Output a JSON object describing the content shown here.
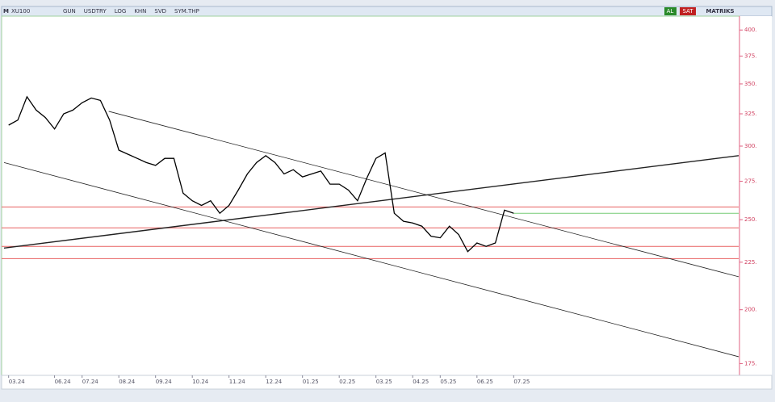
{
  "toolbar": {
    "logo": "M",
    "symbol": "XU100",
    "buttons": [
      "GUN",
      "USDTRY",
      "LOG",
      "KHN",
      "SVD",
      "SYM.THP"
    ],
    "buy": "AL",
    "sell": "SAT",
    "brand": "MATRIKS"
  },
  "chart_data": {
    "type": "line",
    "log": true,
    "color": "#000000",
    "categories": [
      "03.24",
      null,
      null,
      null,
      null,
      "06.24",
      null,
      null,
      "07.24",
      null,
      null,
      null,
      "08.24",
      null,
      null,
      null,
      "09.24",
      null,
      null,
      null,
      "10.24",
      null,
      null,
      null,
      "11.24",
      null,
      null,
      null,
      "12.24",
      null,
      null,
      null,
      "01.25",
      null,
      null,
      null,
      "02.25",
      null,
      null,
      null,
      "03.25",
      null,
      null,
      null,
      "04.25",
      null,
      null,
      "05.25",
      null,
      null,
      null,
      "06.25",
      null,
      null,
      null,
      "07.25",
      null,
      null,
      null,
      null,
      null,
      null,
      null,
      null,
      null,
      null,
      null,
      null,
      null,
      null,
      null,
      null,
      null,
      null,
      null,
      null,
      null,
      null,
      null,
      null
    ],
    "values": [
      316,
      320,
      339,
      328,
      322,
      313,
      325,
      328,
      334,
      338,
      336,
      320,
      297,
      294,
      291,
      288,
      286,
      291,
      291,
      267,
      262,
      259,
      262,
      254,
      259,
      269,
      280,
      288,
      293,
      288,
      280,
      283,
      278,
      280,
      282,
      273,
      273,
      269,
      262,
      277,
      291,
      295,
      254,
      249,
      248,
      246,
      240,
      239,
      246,
      241,
      231,
      236,
      234,
      236,
      256,
      254,
      null,
      null,
      null,
      null,
      null,
      null,
      null,
      null,
      null,
      null,
      null,
      null,
      null,
      null,
      null,
      null,
      null,
      null,
      null,
      null,
      null,
      null,
      null,
      null
    ],
    "ylim": [
      171,
      414
    ],
    "yticks": [
      {
        "value": 175,
        "label": "175."
      },
      {
        "value": 200,
        "label": "200."
      },
      {
        "value": 225,
        "label": "225."
      },
      {
        "value": 250,
        "label": "250."
      },
      {
        "value": 275,
        "label": "275."
      },
      {
        "value": 300,
        "label": "300."
      },
      {
        "value": 325,
        "label": "325."
      },
      {
        "value": 350,
        "label": "350."
      },
      {
        "value": 375,
        "label": "375."
      },
      {
        "value": 400,
        "label": "400."
      }
    ],
    "hlines": [
      {
        "value": 258,
        "color": "#e86060"
      },
      {
        "value": 245,
        "color": "#e86060"
      },
      {
        "value": 234,
        "color": "#e86060"
      },
      {
        "value": 227,
        "color": "#e86060"
      },
      {
        "value": 254,
        "color": "#77cc77",
        "from": 55
      }
    ],
    "trendlines": [
      {
        "x1": -0.5,
        "y1": 233,
        "x2": 79.5,
        "y2": 293,
        "width": 1.4
      },
      {
        "x1": 10.9,
        "y1": 327,
        "x2": 79.5,
        "y2": 217,
        "width": 0.8
      },
      {
        "x1": -0.5,
        "y1": 288,
        "x2": 79.5,
        "y2": 178,
        "width": 0.8
      }
    ]
  }
}
